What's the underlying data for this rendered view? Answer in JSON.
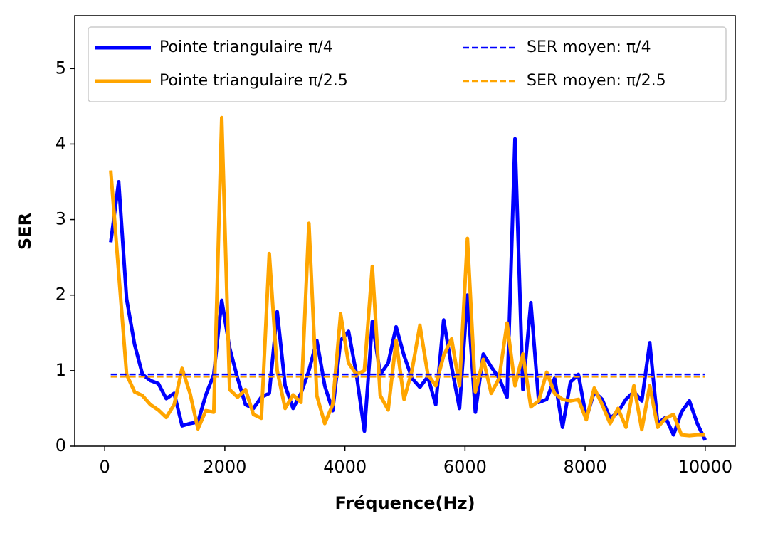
{
  "chart_data": {
    "type": "line",
    "xlabel": "Fréquence(Hz)",
    "ylabel": "SER",
    "xlim": [
      -500,
      10500
    ],
    "ylim": [
      0,
      5.7
    ],
    "xticks": [
      0,
      2000,
      4000,
      6000,
      8000,
      10000
    ],
    "yticks": [
      0,
      1,
      2,
      3,
      4,
      5
    ],
    "legend": "upper center",
    "legend_columns": 2,
    "x": [
      100,
      232,
      364,
      496,
      628,
      760,
      892,
      1024,
      1156,
      1288,
      1420,
      1552,
      1684,
      1816,
      1948,
      2080,
      2212,
      2344,
      2476,
      2608,
      2740,
      2872,
      3004,
      3136,
      3268,
      3400,
      3532,
      3664,
      3796,
      3928,
      4060,
      4192,
      4324,
      4456,
      4588,
      4720,
      4852,
      4984,
      5116,
      5248,
      5380,
      5512,
      5644,
      5776,
      5908,
      6040,
      6172,
      6304,
      6436,
      6568,
      6700,
      6832,
      6964,
      7096,
      7228,
      7360,
      7492,
      7624,
      7756,
      7888,
      8020,
      8152,
      8284,
      8416,
      8548,
      8680,
      8812,
      8944,
      9076,
      9208,
      9340,
      9472,
      9604,
      9736,
      9868,
      10000
    ],
    "series": [
      {
        "name": "Pointe triangulaire π/4",
        "color": "#0000ff",
        "style": "solid",
        "values": [
          2.7,
          3.5,
          1.95,
          1.35,
          0.95,
          0.87,
          0.83,
          0.63,
          0.7,
          0.27,
          0.3,
          0.32,
          0.68,
          0.95,
          1.93,
          1.3,
          0.9,
          0.55,
          0.5,
          0.65,
          0.7,
          1.78,
          0.8,
          0.5,
          0.7,
          1.0,
          1.4,
          0.8,
          0.47,
          1.4,
          1.52,
          0.95,
          0.2,
          1.65,
          0.95,
          1.1,
          1.58,
          1.2,
          0.9,
          0.78,
          0.92,
          0.55,
          1.67,
          1.05,
          0.5,
          2.0,
          0.45,
          1.22,
          1.05,
          0.9,
          0.65,
          4.07,
          0.75,
          1.9,
          0.58,
          0.62,
          0.9,
          0.25,
          0.85,
          0.95,
          0.37,
          0.72,
          0.62,
          0.37,
          0.45,
          0.62,
          0.72,
          0.6,
          1.37,
          0.3,
          0.38,
          0.15,
          0.45,
          0.6,
          0.3,
          0.08
        ]
      },
      {
        "name": "Pointe triangulaire π/2.5",
        "color": "#ffa500",
        "style": "solid",
        "values": [
          3.65,
          2.3,
          0.95,
          0.72,
          0.67,
          0.55,
          0.48,
          0.38,
          0.55,
          1.03,
          0.7,
          0.23,
          0.47,
          0.45,
          4.35,
          0.75,
          0.65,
          0.75,
          0.42,
          0.37,
          2.55,
          1.0,
          0.5,
          0.68,
          0.58,
          2.95,
          0.67,
          0.3,
          0.55,
          1.75,
          1.1,
          0.95,
          1.0,
          2.38,
          0.67,
          0.48,
          1.4,
          0.62,
          1.0,
          1.6,
          0.95,
          0.8,
          1.2,
          1.42,
          0.8,
          2.75,
          0.72,
          1.15,
          0.7,
          0.9,
          1.63,
          0.8,
          1.22,
          0.52,
          0.6,
          0.98,
          0.7,
          0.62,
          0.6,
          0.62,
          0.35,
          0.77,
          0.55,
          0.3,
          0.5,
          0.25,
          0.8,
          0.22,
          0.8,
          0.25,
          0.37,
          0.42,
          0.15,
          0.14,
          0.15,
          0.15
        ]
      },
      {
        "name": "SER moyen: π/4",
        "color": "#0000ff",
        "style": "dashed",
        "x": [
          100,
          10000
        ],
        "values": [
          0.95,
          0.95
        ]
      },
      {
        "name": "SER moyen: π/2.5",
        "color": "#ffa500",
        "style": "dashed",
        "x": [
          100,
          10000
        ],
        "values": [
          0.92,
          0.92
        ]
      }
    ]
  }
}
